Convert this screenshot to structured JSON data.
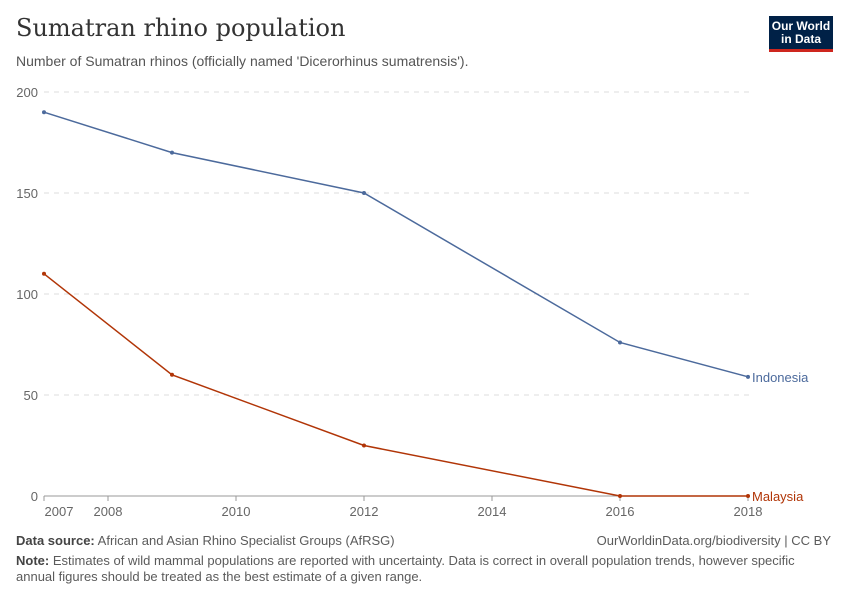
{
  "header": {
    "title": "Sumatran rhino population",
    "subtitle": "Number of Sumatran rhinos (officially named 'Dicerorhinus sumatrensis').",
    "logo": "Our World in Data"
  },
  "footer": {
    "source_label": "Data source:",
    "source": "African and Asian Rhino Specialist Groups (AfRSG)",
    "url": "OurWorldinData.org/biodiversity | CC BY",
    "note_label": "Note:",
    "note": "Estimates of wild mammal populations are reported with uncertainty. Data is correct in overall population trends, however specific annual figures should be treated as the best estimate of a given range."
  },
  "chart_data": {
    "type": "line",
    "xlim": [
      2007,
      2018
    ],
    "ylim": [
      0,
      200
    ],
    "x_ticks": [
      2007,
      2008,
      2010,
      2012,
      2014,
      2016,
      2018
    ],
    "y_ticks": [
      0,
      50,
      100,
      150,
      200
    ],
    "grid": "horizontal dashed",
    "legend": "inline-right",
    "series": [
      {
        "name": "Indonesia",
        "color": "#4c6a9c",
        "x": [
          2007,
          2009,
          2012,
          2016,
          2018
        ],
        "y": [
          190,
          170,
          150,
          76,
          59
        ]
      },
      {
        "name": "Malaysia",
        "color": "#b13507",
        "x": [
          2007,
          2009,
          2012,
          2016,
          2018
        ],
        "y": [
          110,
          60,
          25,
          0,
          0
        ]
      }
    ]
  }
}
